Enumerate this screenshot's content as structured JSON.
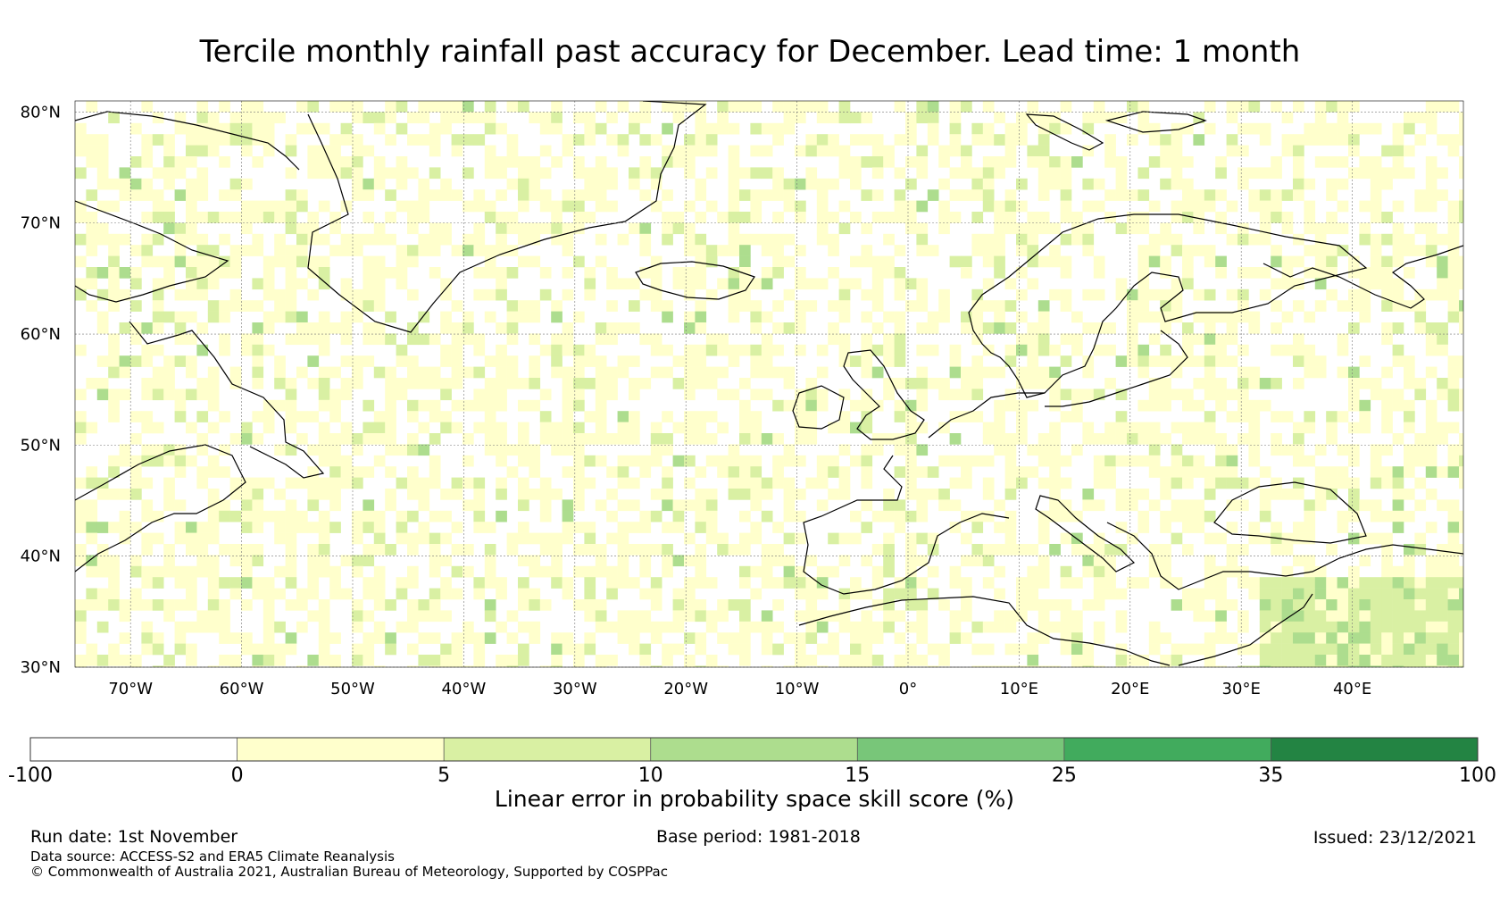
{
  "title": "Tercile monthly rainfall past accuracy for December. Lead time: 1 month",
  "map": {
    "lon_range": [
      -75,
      50
    ],
    "lat_range": [
      30,
      81
    ],
    "lat_ticks": [
      {
        "value": 80,
        "label": "80°N"
      },
      {
        "value": 70,
        "label": "70°N"
      },
      {
        "value": 60,
        "label": "60°N"
      },
      {
        "value": 50,
        "label": "50°N"
      },
      {
        "value": 40,
        "label": "40°N"
      },
      {
        "value": 30,
        "label": "30°N"
      }
    ],
    "lon_ticks": [
      {
        "value": -70,
        "label": "70°W"
      },
      {
        "value": -60,
        "label": "60°W"
      },
      {
        "value": -50,
        "label": "50°W"
      },
      {
        "value": -40,
        "label": "40°W"
      },
      {
        "value": -30,
        "label": "30°W"
      },
      {
        "value": -20,
        "label": "20°W"
      },
      {
        "value": -10,
        "label": "10°W"
      },
      {
        "value": 0,
        "label": "0°"
      },
      {
        "value": 10,
        "label": "10°E"
      },
      {
        "value": 20,
        "label": "20°E"
      },
      {
        "value": 30,
        "label": "30°E"
      },
      {
        "value": 40,
        "label": "40°E"
      }
    ],
    "grid_color": "#777777",
    "coast_color": "#000000"
  },
  "colorbar": {
    "title": "Linear error in probability space skill score (%)",
    "boundaries": [
      "-100",
      "0",
      "5",
      "10",
      "15",
      "25",
      "35",
      "100"
    ],
    "colors": [
      "#ffffff",
      "#ffffcc",
      "#d9f0a3",
      "#addd8e",
      "#78c679",
      "#41ab5d",
      "#238443"
    ]
  },
  "footer": {
    "run_date": "Run date: 1st November",
    "base_period": "Base period: 1981-2018",
    "issued": "Issued: 23/12/2021",
    "data_source": "Data source: ACCESS-S2 and ERA5 Climate Reanalysis",
    "copyright": "© Commonwealth of Australia 2021, Australian Bureau of Meteorology, Supported by COSPPac"
  }
}
